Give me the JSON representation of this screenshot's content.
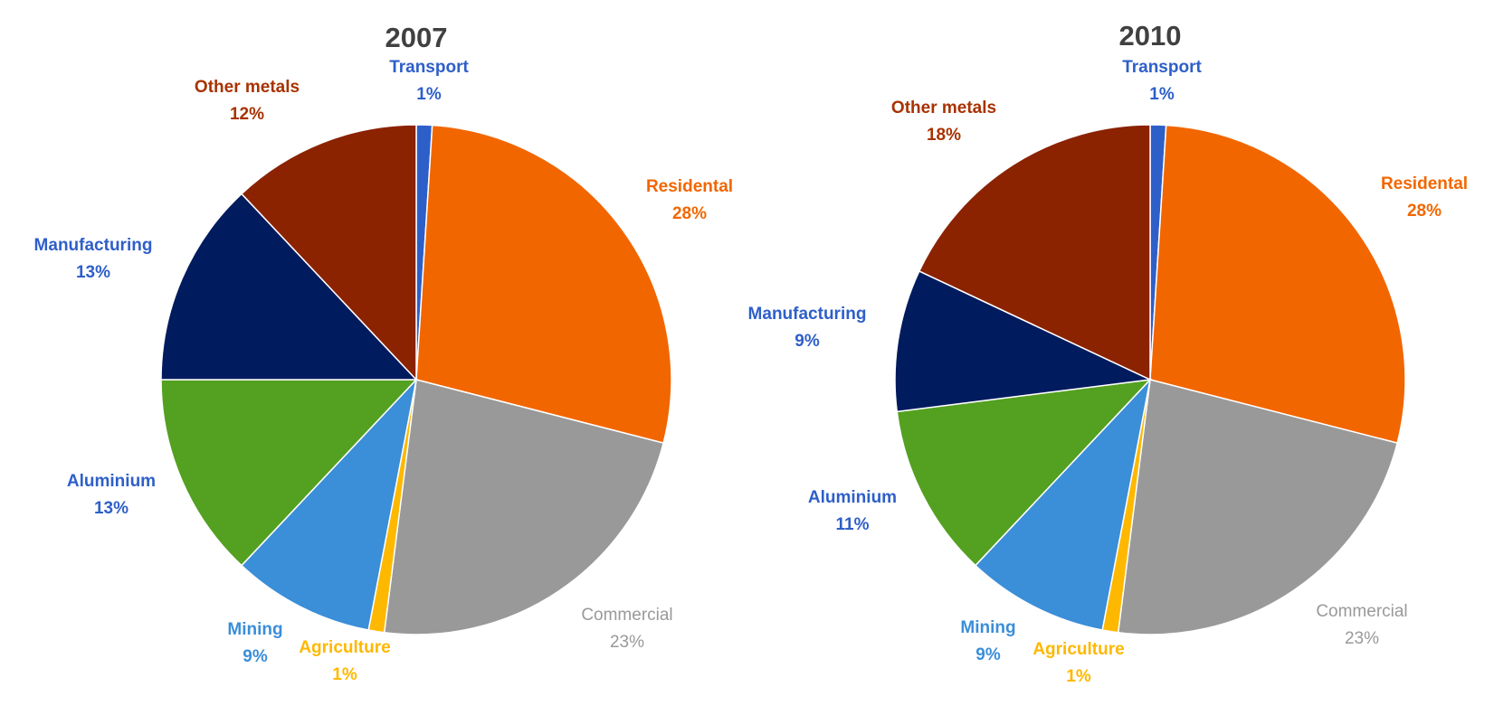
{
  "chart_data": [
    {
      "type": "pie",
      "title": "2007",
      "slices": [
        {
          "name": "Transport",
          "value": 1,
          "color": "#2E5FC9"
        },
        {
          "name": "Residental",
          "value": 28,
          "color": "#F26600"
        },
        {
          "name": "Commercial",
          "value": 23,
          "color": "#999999"
        },
        {
          "name": "Agriculture",
          "value": 1,
          "color": "#FFB800"
        },
        {
          "name": "Mining",
          "value": 9,
          "color": "#3B8ED8"
        },
        {
          "name": "Aluminium",
          "value": 13,
          "color": "#54A021"
        },
        {
          "name": "Manufacturing",
          "value": 13,
          "color": "#001B5E"
        },
        {
          "name": "Other metals",
          "value": 12,
          "color": "#8B2200"
        }
      ],
      "labels": [
        {
          "name": "Transport",
          "pct": "1%",
          "color": "#2E5FC9"
        },
        {
          "name": "Residental",
          "pct": "28%",
          "color": "#F26600"
        },
        {
          "name": "Commercial",
          "pct": "23%",
          "color": "#999999"
        },
        {
          "name": "Agriculture",
          "pct": "1%",
          "color": "#FFB800"
        },
        {
          "name": "Mining",
          "pct": "9%",
          "color": "#3B8ED8"
        },
        {
          "name": "Aluminium",
          "pct": "13%",
          "color": "#2E5FC9"
        },
        {
          "name": "Manufacturing",
          "pct": "13%",
          "color": "#2E5FC9"
        },
        {
          "name": "Other metals",
          "pct": "12%",
          "color": "#A83200"
        }
      ]
    },
    {
      "type": "pie",
      "title": "2010",
      "slices": [
        {
          "name": "Transport",
          "value": 1,
          "color": "#2E5FC9"
        },
        {
          "name": "Residental",
          "value": 28,
          "color": "#F26600"
        },
        {
          "name": "Commercial",
          "value": 23,
          "color": "#999999"
        },
        {
          "name": "Agriculture",
          "value": 1,
          "color": "#FFB800"
        },
        {
          "name": "Mining",
          "value": 9,
          "color": "#3B8ED8"
        },
        {
          "name": "Aluminium",
          "value": 11,
          "color": "#54A021"
        },
        {
          "name": "Manufacturing",
          "value": 9,
          "color": "#001B5E"
        },
        {
          "name": "Other metals",
          "value": 18,
          "color": "#8B2200"
        }
      ],
      "labels": [
        {
          "name": "Transport",
          "pct": "1%",
          "color": "#2E5FC9"
        },
        {
          "name": "Residental",
          "pct": "28%",
          "color": "#F26600"
        },
        {
          "name": "Commercial",
          "pct": "23%",
          "color": "#999999"
        },
        {
          "name": "Agriculture",
          "pct": "1%",
          "color": "#FFB800"
        },
        {
          "name": "Mining",
          "pct": "9%",
          "color": "#3B8ED8"
        },
        {
          "name": "Aluminium",
          "pct": "11%",
          "color": "#2E5FC9"
        },
        {
          "name": "Manufacturing",
          "pct": "9%",
          "color": "#2E5FC9"
        },
        {
          "name": "Other metals",
          "pct": "18%",
          "color": "#A83200"
        }
      ]
    }
  ]
}
